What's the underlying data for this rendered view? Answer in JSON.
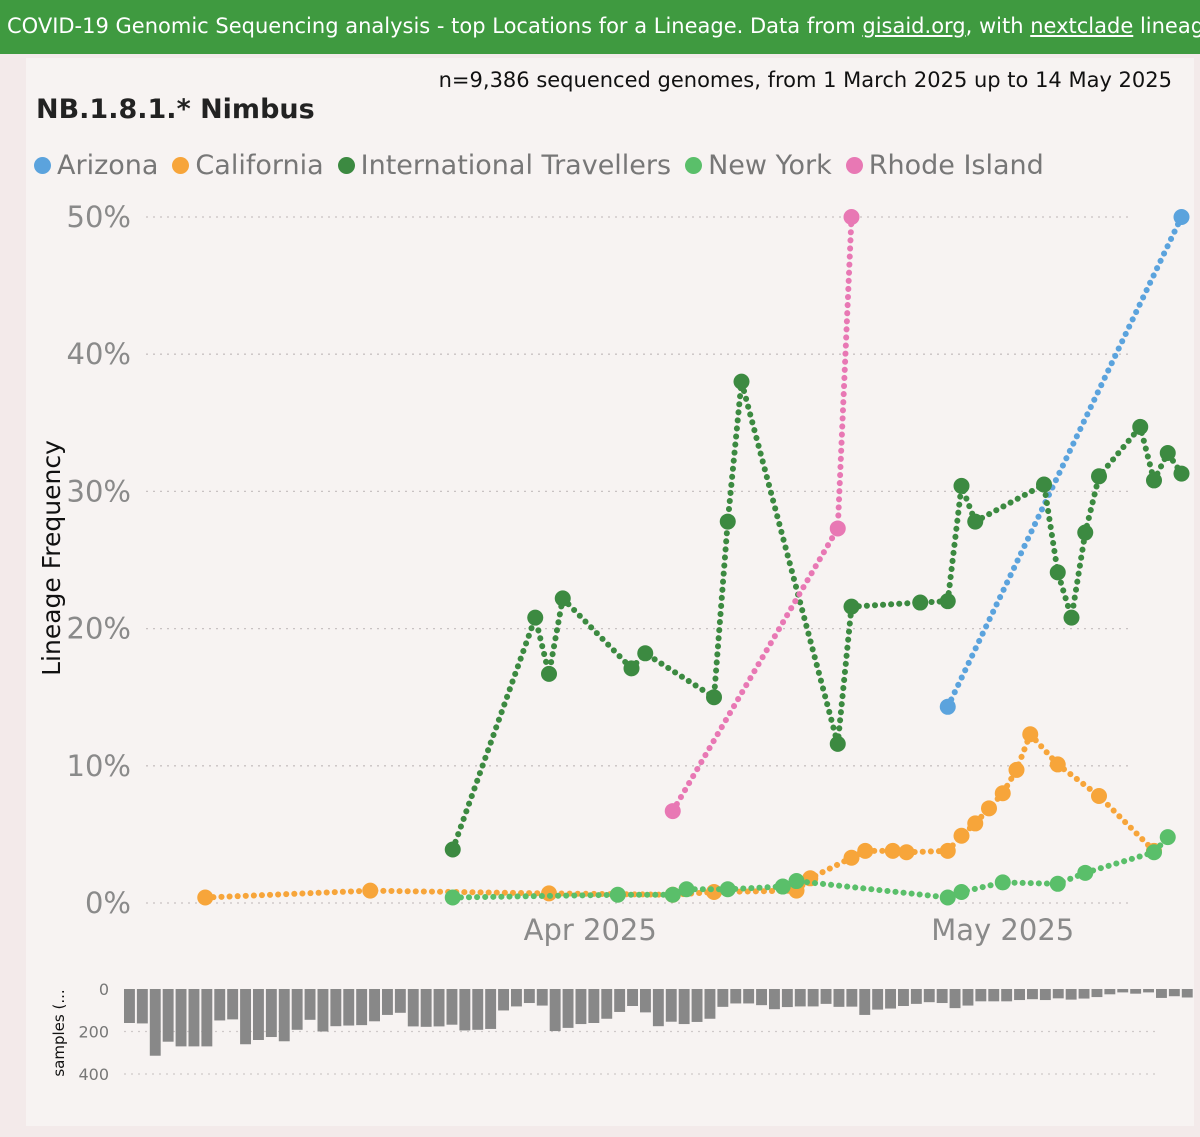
{
  "banner": {
    "part1": "COVID-19 Genomic Sequencing analysis - top Locations for a Lineage. Data from ",
    "link1": "gisaid.org",
    "part2": ", with ",
    "link2": "nextclade",
    "part3": " lineages Source file"
  },
  "subtitle": "n=9,386 sequenced genomes, from 1 March 2025 up to 14 May 2025",
  "title": "NB.1.8.1.* Nimbus",
  "legend": [
    {
      "name": "Arizona",
      "color": "#5ba3dd"
    },
    {
      "name": "California",
      "color": "#f7a53a"
    },
    {
      "name": "International Travellers",
      "color": "#3c8a41"
    },
    {
      "name": "New York",
      "color": "#5abf6a"
    },
    {
      "name": "Rhode Island",
      "color": "#e878b4"
    }
  ],
  "chart_data": [
    {
      "type": "line",
      "ylabel": "Lineage Frequency",
      "ylim": [
        0,
        50
      ],
      "yticks": [
        "0%",
        "10%",
        "20%",
        "30%",
        "40%",
        "50%"
      ],
      "xticks": [
        {
          "label": "Apr 2025",
          "day": 32
        },
        {
          "label": "May 2025",
          "day": 62
        }
      ],
      "grid": true,
      "legend_position": "top",
      "series": [
        {
          "name": "Arizona",
          "color": "#5ba3dd",
          "points": [
            [
              58,
              14.3
            ],
            [
              75,
              50
            ]
          ]
        },
        {
          "name": "California",
          "color": "#f7a53a",
          "points": [
            [
              4,
              0.4
            ],
            [
              16,
              0.9
            ],
            [
              29,
              0.7
            ],
            [
              38,
              0.6
            ],
            [
              41,
              0.8
            ],
            [
              47,
              0.9
            ],
            [
              48,
              1.8
            ],
            [
              51,
              3.3
            ],
            [
              52,
              3.8
            ],
            [
              54,
              3.8
            ],
            [
              55,
              3.7
            ],
            [
              58,
              3.8
            ],
            [
              59,
              4.9
            ],
            [
              60,
              5.8
            ],
            [
              61,
              6.9
            ],
            [
              62,
              8.0
            ],
            [
              63,
              9.7
            ],
            [
              64,
              12.3
            ],
            [
              66,
              10.1
            ],
            [
              69,
              7.8
            ],
            [
              73,
              3.8
            ]
          ]
        },
        {
          "name": "International Travellers",
          "color": "#3c8a41",
          "points": [
            [
              22,
              3.9
            ],
            [
              28,
              20.8
            ],
            [
              29,
              16.7
            ],
            [
              30,
              22.2
            ],
            [
              35,
              17.1
            ],
            [
              36,
              18.2
            ],
            [
              41,
              15.0
            ],
            [
              42,
              27.8
            ],
            [
              43,
              38.0
            ],
            [
              50,
              11.6
            ],
            [
              51,
              21.6
            ],
            [
              56,
              21.9
            ],
            [
              58,
              22.0
            ],
            [
              59,
              30.4
            ],
            [
              60,
              27.8
            ],
            [
              65,
              30.5
            ],
            [
              66,
              24.1
            ],
            [
              67,
              20.8
            ],
            [
              68,
              27.0
            ],
            [
              69,
              31.1
            ],
            [
              72,
              34.7
            ],
            [
              73,
              30.8
            ],
            [
              74,
              32.8
            ],
            [
              75,
              31.3
            ]
          ]
        },
        {
          "name": "New York",
          "color": "#5abf6a",
          "points": [
            [
              22,
              0.4
            ],
            [
              34,
              0.6
            ],
            [
              38,
              0.6
            ],
            [
              39,
              1.0
            ],
            [
              42,
              1.0
            ],
            [
              46,
              1.2
            ],
            [
              47,
              1.6
            ],
            [
              58,
              0.4
            ],
            [
              59,
              0.8
            ],
            [
              62,
              1.5
            ],
            [
              66,
              1.4
            ],
            [
              68,
              2.2
            ],
            [
              73,
              3.7
            ],
            [
              74,
              4.8
            ]
          ]
        },
        {
          "name": "Rhode Island",
          "color": "#e878b4",
          "points": [
            [
              38,
              6.7
            ],
            [
              50,
              27.3
            ],
            [
              51,
              50
            ]
          ]
        }
      ]
    },
    {
      "type": "bar",
      "ylabel": "samples (...",
      "ylim": [
        0,
        400
      ],
      "yticks": [
        "0",
        "200",
        "400"
      ],
      "values": [
        160,
        162,
        314,
        248,
        270,
        270,
        270,
        148,
        143,
        260,
        240,
        226,
        246,
        192,
        145,
        200,
        175,
        172,
        170,
        152,
        122,
        112,
        176,
        178,
        176,
        168,
        195,
        192,
        188,
        101,
        82,
        66,
        78,
        198,
        183,
        165,
        160,
        140,
        108,
        80,
        110,
        175,
        154,
        165,
        155,
        140,
        84,
        68,
        68,
        76,
        95,
        85,
        82,
        82,
        70,
        84,
        83,
        122,
        97,
        92,
        80,
        70,
        62,
        66,
        90,
        78,
        58,
        58,
        58,
        52,
        48,
        52,
        44,
        50,
        45,
        38,
        25,
        16,
        22,
        16,
        42,
        34,
        40
      ]
    }
  ]
}
